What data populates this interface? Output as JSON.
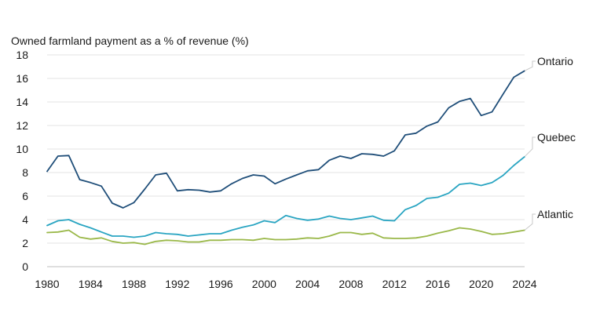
{
  "chart_data": {
    "type": "line",
    "title": "",
    "ylabel": "Owned farmland payment as a % of revenue (%)",
    "xlabel": "",
    "xlim": [
      1980,
      2024
    ],
    "ylim": [
      0,
      18
    ],
    "x_ticks": [
      1980,
      1984,
      1988,
      1992,
      1996,
      2000,
      2004,
      2008,
      2012,
      2016,
      2020,
      2024
    ],
    "y_ticks": [
      0,
      2,
      4,
      6,
      8,
      10,
      12,
      14,
      16,
      18
    ],
    "grid": "horizontal",
    "x": [
      1980,
      1981,
      1982,
      1983,
      1984,
      1985,
      1986,
      1987,
      1988,
      1989,
      1990,
      1991,
      1992,
      1993,
      1994,
      1995,
      1996,
      1997,
      1998,
      1999,
      2000,
      2001,
      2002,
      2003,
      2004,
      2005,
      2006,
      2007,
      2008,
      2009,
      2010,
      2011,
      2012,
      2013,
      2014,
      2015,
      2016,
      2017,
      2018,
      2019,
      2020,
      2021,
      2022,
      2023,
      2024
    ],
    "series": [
      {
        "name": "Ontario",
        "color": "#1f4e79",
        "values": [
          8.1,
          9.4,
          9.45,
          7.4,
          7.15,
          6.85,
          5.4,
          5.0,
          5.45,
          6.6,
          7.8,
          7.95,
          6.45,
          6.55,
          6.5,
          6.35,
          6.45,
          7.05,
          7.5,
          7.8,
          7.7,
          7.05,
          7.45,
          7.8,
          8.15,
          8.25,
          9.05,
          9.4,
          9.2,
          9.6,
          9.55,
          9.4,
          9.85,
          11.2,
          11.35,
          11.95,
          12.3,
          13.5,
          14.05,
          14.3,
          12.85,
          13.15,
          14.65,
          16.1,
          16.65
        ]
      },
      {
        "name": "Quebec",
        "color": "#2aa5c2",
        "values": [
          3.5,
          3.9,
          4.0,
          3.6,
          3.3,
          2.95,
          2.6,
          2.6,
          2.5,
          2.6,
          2.9,
          2.8,
          2.75,
          2.6,
          2.7,
          2.8,
          2.8,
          3.1,
          3.35,
          3.55,
          3.9,
          3.75,
          4.35,
          4.1,
          3.95,
          4.05,
          4.3,
          4.1,
          4.0,
          4.15,
          4.3,
          3.95,
          3.9,
          4.85,
          5.2,
          5.8,
          5.9,
          6.25,
          7.0,
          7.1,
          6.9,
          7.15,
          7.75,
          8.6,
          9.35
        ]
      },
      {
        "name": "Atlantic",
        "color": "#9ab849",
        "values": [
          2.9,
          2.95,
          3.1,
          2.5,
          2.35,
          2.45,
          2.15,
          2.0,
          2.05,
          1.9,
          2.15,
          2.25,
          2.2,
          2.1,
          2.1,
          2.25,
          2.25,
          2.3,
          2.3,
          2.25,
          2.4,
          2.3,
          2.3,
          2.35,
          2.45,
          2.4,
          2.6,
          2.9,
          2.9,
          2.75,
          2.85,
          2.45,
          2.4,
          2.4,
          2.45,
          2.6,
          2.85,
          3.05,
          3.3,
          3.2,
          3.0,
          2.75,
          2.8,
          2.95,
          3.1
        ]
      }
    ]
  }
}
